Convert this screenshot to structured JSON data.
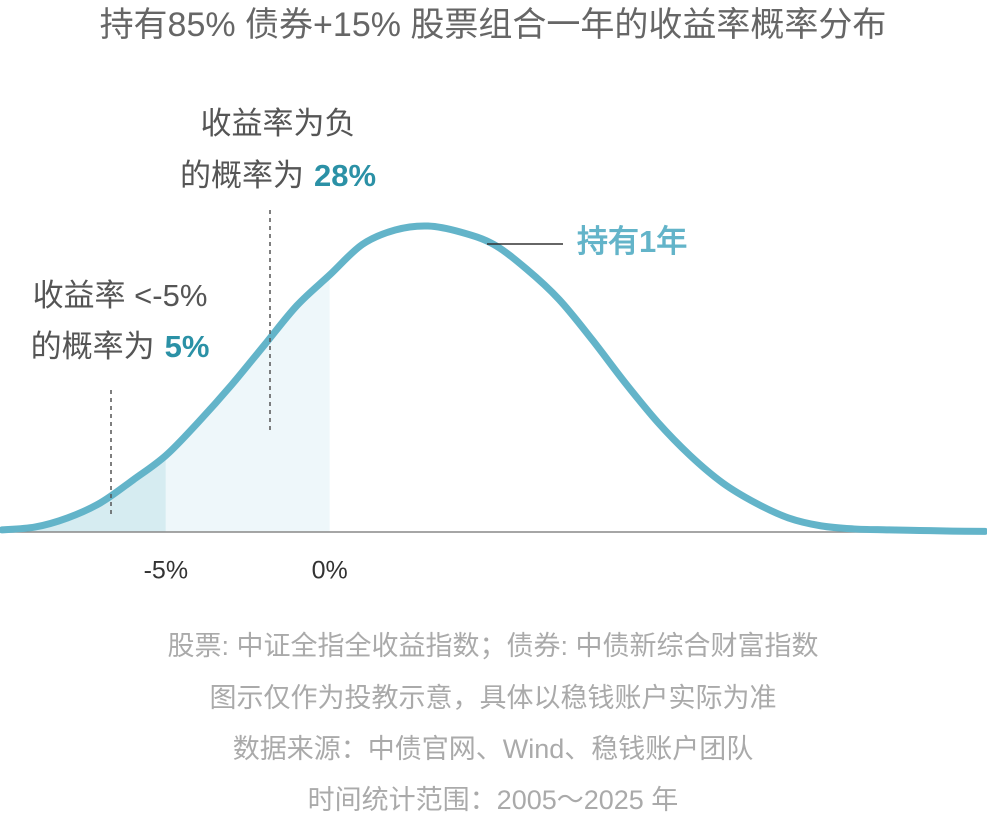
{
  "chart_data": {
    "type": "density",
    "title": "持有85% 债券+15% 股票组合一年的收益率概率分布",
    "x": [
      -10,
      -9,
      -8,
      -7,
      -6,
      -5,
      -4,
      -3,
      -2,
      -1,
      0,
      1,
      2,
      3,
      4,
      5,
      6,
      7,
      8,
      9,
      10,
      11,
      12,
      13,
      14,
      15,
      16,
      17,
      18,
      19,
      20
    ],
    "series": [
      {
        "name": "持有1年",
        "color": "#63b4c9",
        "values": [
          0.7,
          1.6,
          4.6,
          9.5,
          17,
          25,
          36,
          48,
          61,
          74,
          84,
          94,
          98.7,
          100,
          98,
          94,
          86,
          76,
          63,
          49,
          36,
          25,
          16,
          9.5,
          4.6,
          2,
          1,
          0.7,
          0.5,
          0.3,
          0.2
        ]
      }
    ],
    "xlim": [
      -10,
      20
    ],
    "ylim": [
      0,
      100
    ],
    "xticks": [
      {
        "value": -5,
        "label": "-5%"
      },
      {
        "value": 0,
        "label": "0%"
      }
    ],
    "annotations": [
      {
        "lines": [
          "收益率为负",
          "的概率为"
        ],
        "highlight": "28%"
      },
      {
        "lines": [
          "收益率 <-5%",
          "的概率为"
        ],
        "highlight": "5%"
      }
    ],
    "footnotes": [
      "股票: 中证全指全收益指数；债券: 中债新综合财富指数",
      "图示仅作为投教示意，具体以稳钱账户实际为准",
      "数据来源：中债官网、Wind、稳钱账户团队",
      "时间统计范围：2005～2025 年"
    ]
  }
}
